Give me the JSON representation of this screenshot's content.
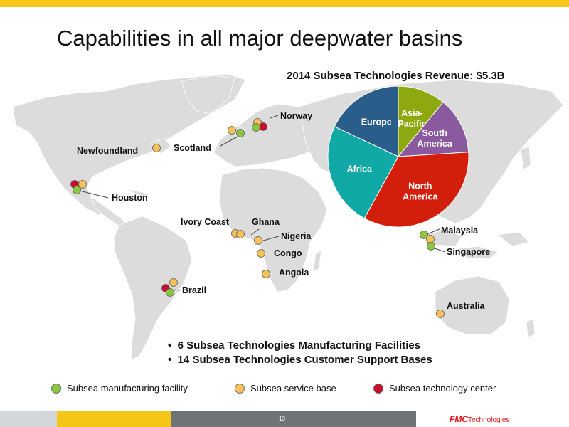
{
  "slide": {
    "title": "Capabilities in all major deepwater basins",
    "page_number": "13"
  },
  "logo": {
    "brand": "FMC",
    "suffix": "Technologies"
  },
  "locations": [
    {
      "name": "Norway",
      "label": "Norway"
    },
    {
      "name": "Scotland",
      "label": "Scotland"
    },
    {
      "name": "Newfoundland",
      "label": "Newfoundland"
    },
    {
      "name": "Houston",
      "label": "Houston"
    },
    {
      "name": "Ivory Coast",
      "label": "Ivory Coast"
    },
    {
      "name": "Ghana",
      "label": "Ghana"
    },
    {
      "name": "Nigeria",
      "label": "Nigeria"
    },
    {
      "name": "Congo",
      "label": "Congo"
    },
    {
      "name": "Angola",
      "label": "Angola"
    },
    {
      "name": "Brazil",
      "label": "Brazil"
    },
    {
      "name": "Malaysia",
      "label": "Malaysia"
    },
    {
      "name": "Singapore",
      "label": "Singapore"
    },
    {
      "name": "Australia",
      "label": "Australia"
    }
  ],
  "bullets": [
    "6 Subsea Technologies Manufacturing Facilities",
    "14 Subsea Technologies Customer Support Bases"
  ],
  "legend": [
    {
      "label": "Subsea manufacturing facility",
      "color": "#8dc63f"
    },
    {
      "label": "Subsea service base",
      "color": "#f7c25a"
    },
    {
      "label": "Subsea technology center",
      "color": "#c8102e"
    }
  ],
  "colors": {
    "manufacturing": "#8dc63f",
    "service": "#f7c25a",
    "technology": "#c8102e",
    "map": "#dcdcdc"
  },
  "chart_data": {
    "type": "pie",
    "title": "2014 Subsea Technologies Revenue: $5.3B",
    "slices": [
      {
        "label": "Asia-\nPacific",
        "value": 11,
        "color": "#8ea80f"
      },
      {
        "label": "South\nAmerica",
        "value": 13,
        "color": "#8b5a9e"
      },
      {
        "label": "North\nAmerica",
        "value": 34,
        "color": "#d41e0c"
      },
      {
        "label": "Africa",
        "value": 24,
        "color": "#10a9a6"
      },
      {
        "label": "Europe",
        "value": 18,
        "color": "#2a5d89"
      }
    ]
  }
}
